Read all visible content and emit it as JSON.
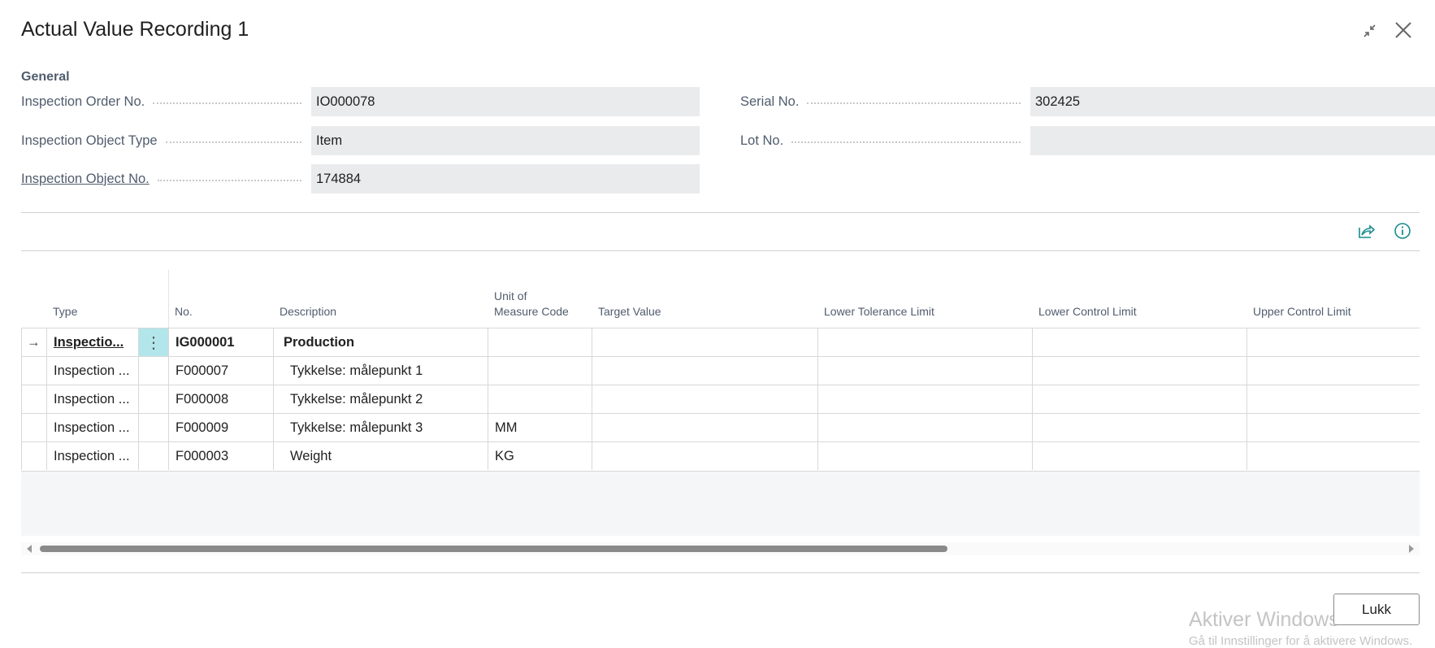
{
  "window": {
    "title": "Actual Value Recording 1",
    "collapse_icon": "collapse-arrows-icon",
    "close_icon": "close-icon"
  },
  "general": {
    "section_label": "General",
    "fields_left": [
      {
        "label": "Inspection Order No.",
        "value": "IO000078",
        "link": false
      },
      {
        "label": "Inspection Object Type",
        "value": "Item",
        "link": false
      },
      {
        "label": "Inspection Object No.",
        "value": "174884",
        "link": true
      }
    ],
    "fields_right": [
      {
        "label": "Serial No.",
        "value": "302425"
      },
      {
        "label": "Lot No.",
        "value": ""
      }
    ]
  },
  "toolbar": {
    "share_icon": "share-icon",
    "info_icon": "info-icon"
  },
  "table": {
    "columns": [
      "",
      "Type",
      "",
      "No.",
      "Description",
      "Unit of\nMeasure Code",
      "Target Value",
      "Lower Tolerance Limit",
      "Lower Control Limit",
      "Upper Control Limit"
    ],
    "rows": [
      {
        "selected": true,
        "type": "Inspectio...",
        "no": "IG000001",
        "description": "Production",
        "uom": "",
        "target": "",
        "ltl": "",
        "lcl": "",
        "ucl": ""
      },
      {
        "selected": false,
        "type": "Inspection ...",
        "no": "F000007",
        "description": "Tykkelse: målepunkt 1",
        "uom": "",
        "target": "",
        "ltl": "",
        "lcl": "",
        "ucl": ""
      },
      {
        "selected": false,
        "type": "Inspection ...",
        "no": "F000008",
        "description": "Tykkelse: målepunkt 2",
        "uom": "",
        "target": "",
        "ltl": "",
        "lcl": "",
        "ucl": ""
      },
      {
        "selected": false,
        "type": "Inspection ...",
        "no": "F000009",
        "description": "Tykkelse: målepunkt 3",
        "uom": "MM",
        "target": "",
        "ltl": "",
        "lcl": "",
        "ucl": ""
      },
      {
        "selected": false,
        "type": "Inspection ...",
        "no": "F000003",
        "description": "Weight",
        "uom": "KG",
        "target": "",
        "ltl": "",
        "lcl": "",
        "ucl": ""
      }
    ],
    "accent": "#b3e6ea"
  },
  "footer": {
    "close_label": "Lukk"
  },
  "watermark": {
    "line1": "Aktiver Windows",
    "line2": "Gå til Innstillinger for å aktivere Windows."
  }
}
